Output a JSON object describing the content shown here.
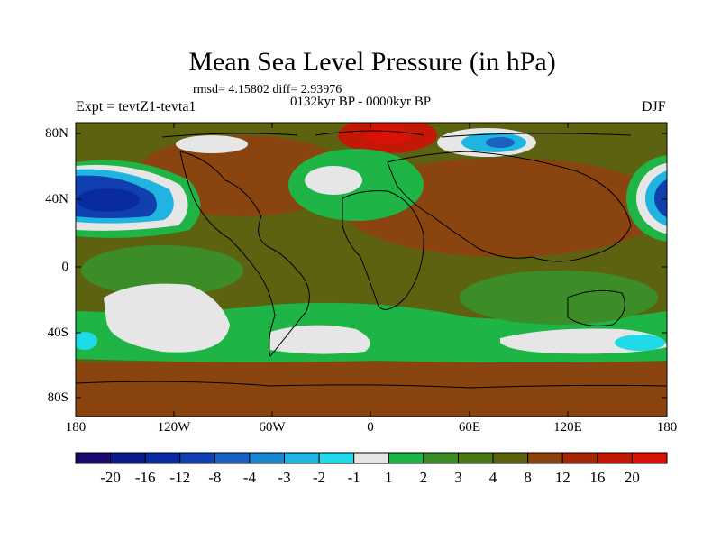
{
  "title": "Mean Sea Level Pressure (in hPa)",
  "stats": "rmsd= 4.15802 diff= 2.93976",
  "period": "0132kyr BP - 0000kyr BP",
  "experiment": "Expt = tevtZ1-tevta1",
  "season": "DJF",
  "lat_labels": [
    "80N",
    "40N",
    "0",
    "40S",
    "80S"
  ],
  "lon_labels": [
    "180",
    "120W",
    "60W",
    "0",
    "60E",
    "120E",
    "180"
  ],
  "colorbar": {
    "labels": [
      "-20",
      "-16",
      "-12",
      "-8",
      "-4",
      "-3",
      "-2",
      "-1",
      "1",
      "2",
      "3",
      "4",
      "8",
      "12",
      "16",
      "20"
    ],
    "colors": [
      "#1c0a6e",
      "#0a1a8a",
      "#0a2aa0",
      "#1040b0",
      "#1c60c0",
      "#1b86d0",
      "#20b4e0",
      "#20dae8",
      "#e6e6e6",
      "#1eb446",
      "#3c8c28",
      "#4a7818",
      "#5c6210",
      "#8a4410",
      "#a42808",
      "#c41806",
      "#d81208"
    ]
  },
  "colors": {
    "ocean_mid": "#5c6210",
    "land": "#4a7818",
    "high_pressure": "#8a4410",
    "white_band": "#e6e6e6",
    "low_pressure": "#1040b0"
  }
}
